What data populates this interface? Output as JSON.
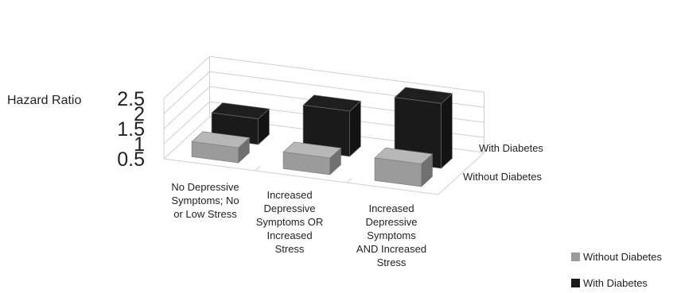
{
  "chart_data": {
    "type": "bar",
    "subtype": "3d-clustered-column",
    "ylabel": "Hazard Ratio",
    "ylim": [
      0.5,
      2.5
    ],
    "yticks": [
      "0.5",
      "1",
      "1.5",
      "2",
      "2.5"
    ],
    "grid": true,
    "categories": [
      [
        "No Depressive",
        "Symptoms; No",
        "or Low Stress"
      ],
      [
        "Increased",
        "Depressive",
        "Symptoms OR",
        "Increased",
        "Stress"
      ],
      [
        "Increased",
        "Depressive",
        "Symptoms",
        "AND Increased",
        "Stress"
      ]
    ],
    "depth_labels": [
      "With Diabetes",
      "Without Diabetes"
    ],
    "series": [
      {
        "name": "Without Diabetes",
        "values": [
          1.0,
          1.05,
          1.25
        ],
        "color": "#9b9b9b"
      },
      {
        "name": "With Diabetes",
        "values": [
          1.35,
          2.0,
          2.65
        ],
        "color": "#1a1a1a"
      }
    ],
    "legend": {
      "position": "bottom-right",
      "items": [
        {
          "label": "Without Diabetes",
          "color": "#9b9b9b"
        },
        {
          "label": "With Diabetes",
          "color": "#1a1a1a"
        }
      ]
    }
  }
}
